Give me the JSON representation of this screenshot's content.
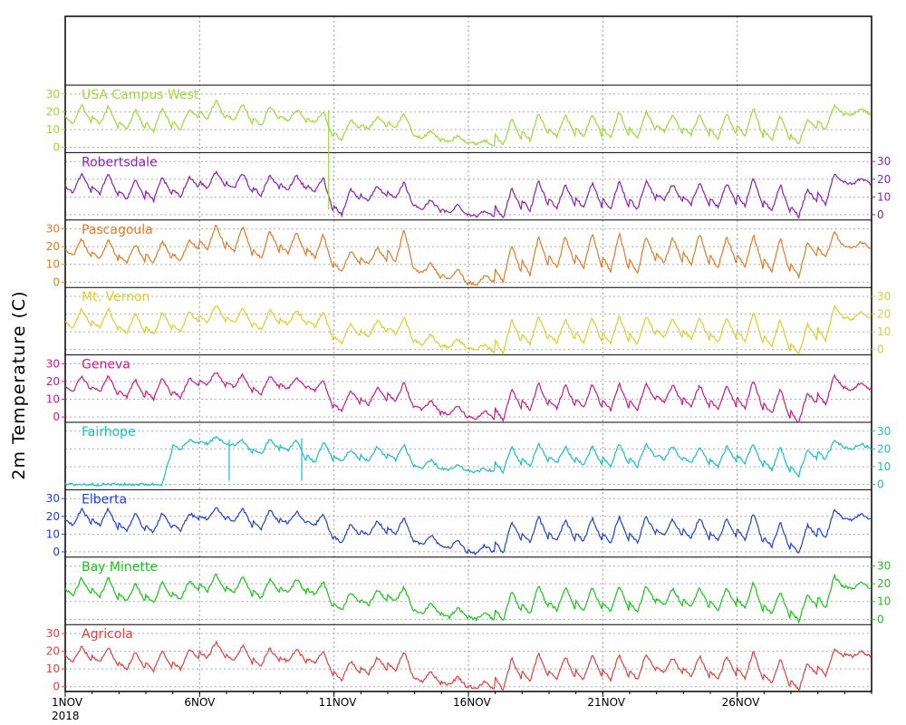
{
  "chart_data": {
    "type": "line",
    "ylabel": "2m Temperature (C)",
    "x_range": [
      "2018-11-01",
      "2018-11-30"
    ],
    "x_ticks": [
      {
        "date": "2018-11-01",
        "label": "1NOV",
        "sublabel": "2018"
      },
      {
        "date": "2018-11-06",
        "label": "6NOV"
      },
      {
        "date": "2018-11-11",
        "label": "11NOV"
      },
      {
        "date": "2018-11-16",
        "label": "16NOV"
      },
      {
        "date": "2018-11-21",
        "label": "21NOV"
      },
      {
        "date": "2018-11-26",
        "label": "26NOV"
      }
    ],
    "y_ticks": [
      0,
      10,
      20,
      30
    ],
    "ylim": [
      -3,
      35
    ],
    "grid": true,
    "series": [
      {
        "name": "USA Campus West",
        "color": "#9ad93a",
        "axis_side": "left",
        "daily_low": [
          13,
          13,
          10,
          9,
          10,
          16,
          15,
          12,
          15,
          14,
          4,
          10,
          11,
          5,
          3,
          2,
          1,
          4,
          6,
          6,
          5,
          5,
          9,
          7,
          5,
          6,
          4,
          2,
          10,
          18
        ],
        "daily_high": [
          25,
          24,
          22,
          23,
          22,
          27,
          25,
          24,
          22,
          21,
          16,
          18,
          20,
          10,
          7,
          4,
          17,
          20,
          19,
          20,
          21,
          21,
          19,
          19,
          20,
          23,
          19,
          16,
          24,
          22
        ]
      },
      {
        "name": "Robertsdale",
        "color": "#8a1fb5",
        "axis_side": "right",
        "daily_low": [
          12,
          12,
          9,
          8,
          10,
          15,
          15,
          11,
          14,
          13,
          0,
          8,
          9,
          3,
          1,
          -1,
          -2,
          2,
          4,
          4,
          3,
          3,
          8,
          6,
          4,
          5,
          2,
          -1,
          6,
          17
        ],
        "daily_high": [
          24,
          24,
          21,
          22,
          22,
          25,
          24,
          23,
          23,
          22,
          15,
          17,
          19,
          9,
          6,
          3,
          16,
          20,
          18,
          19,
          20,
          20,
          18,
          19,
          19,
          22,
          18,
          15,
          24,
          21
        ]
      },
      {
        "name": "Pascagoula",
        "color": "#e07b27",
        "axis_side": "left",
        "daily_low": [
          15,
          13,
          11,
          11,
          12,
          18,
          17,
          13,
          16,
          14,
          6,
          10,
          11,
          5,
          2,
          -2,
          0,
          4,
          8,
          8,
          6,
          5,
          11,
          10,
          8,
          9,
          6,
          3,
          14,
          19
        ],
        "daily_high": [
          25,
          25,
          22,
          24,
          24,
          34,
          33,
          30,
          29,
          28,
          18,
          20,
          31,
          11,
          8,
          4,
          22,
          27,
          27,
          29,
          29,
          27,
          26,
          29,
          27,
          28,
          26,
          23,
          29,
          23
        ]
      },
      {
        "name": "Mt. Vernon",
        "color": "#d4d12e",
        "axis_side": "right",
        "daily_low": [
          12,
          12,
          9,
          8,
          10,
          15,
          15,
          11,
          14,
          13,
          4,
          7,
          9,
          3,
          1,
          0,
          -2,
          3,
          4,
          4,
          3,
          3,
          7,
          6,
          4,
          5,
          2,
          -3,
          5,
          17
        ],
        "daily_high": [
          24,
          24,
          21,
          22,
          22,
          26,
          24,
          23,
          23,
          22,
          15,
          17,
          19,
          9,
          6,
          3,
          18,
          20,
          18,
          19,
          20,
          20,
          18,
          19,
          19,
          22,
          18,
          15,
          25,
          21
        ]
      },
      {
        "name": "Geneva",
        "color": "#cc1a80",
        "axis_side": "left",
        "daily_low": [
          14,
          14,
          11,
          10,
          11,
          18,
          17,
          13,
          16,
          15,
          3,
          7,
          9,
          4,
          1,
          -1,
          -2,
          4,
          5,
          5,
          4,
          4,
          8,
          6,
          4,
          5,
          2,
          -3,
          7,
          15
        ],
        "daily_high": [
          24,
          24,
          22,
          23,
          22,
          26,
          25,
          24,
          23,
          22,
          16,
          17,
          20,
          10,
          7,
          4,
          17,
          20,
          19,
          20,
          20,
          20,
          19,
          19,
          19,
          22,
          17,
          14,
          24,
          20
        ]
      },
      {
        "name": "Fairhope",
        "color": "#17c0c0",
        "axis_side": "right",
        "daily_low": [
          0,
          0,
          0,
          0,
          20,
          23,
          22,
          17,
          19,
          12,
          13,
          13,
          14,
          9,
          8,
          7,
          7,
          10,
          12,
          11,
          10,
          10,
          14,
          12,
          10,
          12,
          8,
          5,
          14,
          20
        ],
        "daily_high": [
          0,
          0,
          0,
          0,
          25,
          27,
          25,
          26,
          26,
          25,
          20,
          22,
          23,
          14,
          11,
          9,
          22,
          24,
          22,
          22,
          24,
          24,
          22,
          22,
          22,
          24,
          22,
          20,
          26,
          23
        ]
      },
      {
        "name": "Elberta",
        "color": "#1f3fd6",
        "axis_side": "left",
        "daily_low": [
          15,
          15,
          12,
          11,
          12,
          18,
          17,
          13,
          16,
          15,
          5,
          9,
          10,
          4,
          2,
          -1,
          -1,
          5,
          6,
          6,
          5,
          5,
          9,
          8,
          6,
          7,
          3,
          -1,
          8,
          18
        ],
        "daily_high": [
          25,
          25,
          22,
          23,
          22,
          26,
          25,
          24,
          23,
          22,
          16,
          18,
          20,
          10,
          7,
          4,
          18,
          21,
          19,
          20,
          21,
          21,
          19,
          20,
          20,
          23,
          18,
          16,
          24,
          22
        ]
      },
      {
        "name": "Bay Minette",
        "color": "#18c418",
        "axis_side": "right",
        "daily_low": [
          13,
          13,
          10,
          9,
          11,
          16,
          15,
          12,
          15,
          14,
          5,
          8,
          10,
          3,
          1,
          0,
          -1,
          3,
          5,
          5,
          4,
          4,
          8,
          7,
          5,
          6,
          3,
          -1,
          6,
          17
        ],
        "daily_high": [
          24,
          24,
          21,
          22,
          22,
          26,
          25,
          23,
          23,
          22,
          16,
          17,
          19,
          10,
          7,
          4,
          17,
          20,
          19,
          19,
          20,
          20,
          18,
          19,
          19,
          22,
          17,
          15,
          25,
          21
        ]
      },
      {
        "name": "Agricola",
        "color": "#e04040",
        "axis_side": "left",
        "daily_low": [
          14,
          14,
          10,
          9,
          10,
          16,
          15,
          12,
          14,
          13,
          4,
          7,
          9,
          3,
          1,
          -1,
          -2,
          3,
          4,
          4,
          4,
          4,
          8,
          6,
          4,
          5,
          2,
          -2,
          6,
          17
        ],
        "daily_high": [
          23,
          23,
          20,
          21,
          21,
          26,
          24,
          22,
          22,
          21,
          15,
          17,
          21,
          9,
          6,
          3,
          17,
          20,
          18,
          19,
          19,
          19,
          17,
          18,
          18,
          21,
          17,
          14,
          22,
          20
        ]
      }
    ],
    "spikes": [
      {
        "series": "USA Campus West",
        "date": "2018-11-10.8",
        "to_value": -35
      },
      {
        "series": "Fairhope",
        "date": "2018-11-07.1",
        "to_value": 2
      },
      {
        "series": "Fairhope",
        "date": "2018-11-09.8",
        "to_value": 2
      }
    ]
  }
}
